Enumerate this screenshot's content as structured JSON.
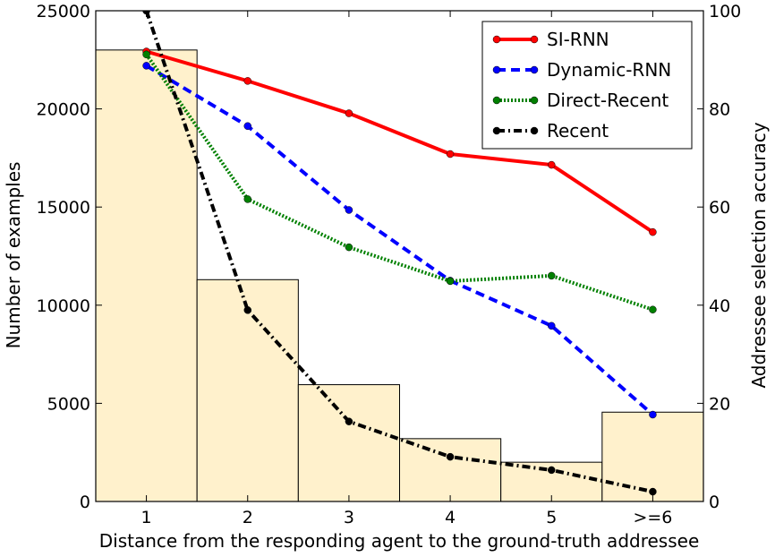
{
  "chart_data": {
    "type": "bar+line",
    "categories": [
      "1",
      "2",
      "3",
      "4",
      "5",
      ">=6"
    ],
    "bars": {
      "name": "",
      "values": [
        23000,
        11300,
        5950,
        3200,
        2000,
        4550
      ],
      "color": "#fff1cc"
    },
    "left_axis": {
      "label": "Number of examples",
      "range": [
        0,
        25000
      ],
      "ticks": [
        0,
        5000,
        10000,
        15000,
        20000,
        25000
      ]
    },
    "right_axis": {
      "label": "Addressee selection accuracy",
      "range": [
        0,
        100
      ],
      "ticks": [
        0,
        20,
        40,
        60,
        80,
        100
      ]
    },
    "xlabel": "Distance from the responding agent to the ground-truth addressee",
    "series": [
      {
        "name": "SI-RNN",
        "values": [
          91.7,
          85.7,
          79.1,
          70.8,
          68.6,
          54.9
        ],
        "color": "#ff0000",
        "style": "solid"
      },
      {
        "name": "Dynamic-RNN",
        "values": [
          88.8,
          76.5,
          59.4,
          45.0,
          35.8,
          17.7
        ],
        "color": "#0000ff",
        "style": "dashed"
      },
      {
        "name": "Direct-Recent",
        "values": [
          91.1,
          61.6,
          51.8,
          44.9,
          46.0,
          39.1
        ],
        "color": "#008000",
        "style": "dotted"
      },
      {
        "name": "Recent",
        "values": [
          100,
          39.0,
          16.3,
          9.1,
          6.4,
          2.0
        ],
        "color": "#000000",
        "style": "dashdot"
      }
    ],
    "legend_position": "top-right",
    "grid": false
  }
}
